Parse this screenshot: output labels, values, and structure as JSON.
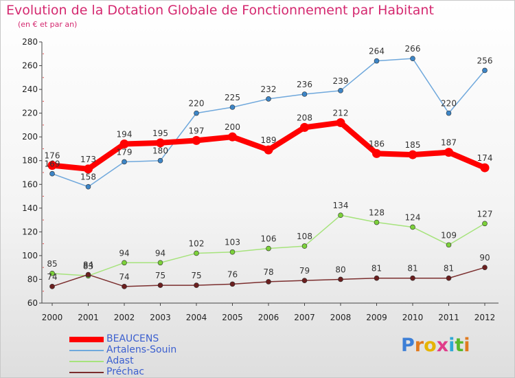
{
  "title": "Evolution de la Dotation Globale de Fonctionnement par Habitant",
  "subtitle": "(en € et par an)",
  "logo_text": "Proxiti",
  "colors": {
    "title": "#d4286f",
    "legend_text": "#3b5fcf"
  },
  "chart_data": {
    "type": "line",
    "x": [
      "2000",
      "2001",
      "2002",
      "2003",
      "2004",
      "2005",
      "2006",
      "2007",
      "2008",
      "2009",
      "2010",
      "2011",
      "2012"
    ],
    "ylim": [
      60,
      280
    ],
    "yticks": [
      60,
      80,
      100,
      120,
      140,
      160,
      180,
      200,
      220,
      240,
      260,
      280
    ],
    "grid": false,
    "legend_position": "bottom-left",
    "series": [
      {
        "name": "BEAUCENS",
        "color": "#ff0000",
        "point_color": "#ff0000",
        "width": 8,
        "values": [
          176,
          173,
          194,
          195,
          197,
          200,
          189,
          208,
          212,
          186,
          185,
          187,
          174
        ],
        "labels": [
          "176",
          "173",
          "194",
          "195",
          "197",
          "200",
          "189",
          "208",
          "212",
          "186",
          "185",
          "187",
          "174"
        ]
      },
      {
        "name": "Artalens-Souin",
        "color": "#6fa8dc",
        "point_color": "#3d85c6",
        "width": 1.5,
        "values": [
          169,
          158,
          179,
          180,
          220,
          225,
          232,
          236,
          239,
          264,
          266,
          220,
          256
        ],
        "labels": [
          "169",
          "158",
          "179",
          "180",
          "220",
          "225",
          "232",
          "236",
          "239",
          "264",
          "266",
          "220",
          "256"
        ]
      },
      {
        "name": "Adast",
        "color": "#a6e37c",
        "point_color": "#7cd13a",
        "width": 1.5,
        "values": [
          85,
          83,
          94,
          94,
          102,
          103,
          106,
          108,
          134,
          128,
          124,
          109,
          127
        ],
        "labels": [
          "85",
          "83",
          "94",
          "94",
          "102",
          "103",
          "106",
          "108",
          "134",
          "128",
          "124",
          "109",
          "127"
        ]
      },
      {
        "name": "Préchac",
        "color": "#7b2e2e",
        "point_color": "#6b1f1f",
        "width": 1.5,
        "values": [
          74,
          84,
          74,
          75,
          75,
          76,
          78,
          79,
          80,
          81,
          81,
          81,
          90
        ],
        "labels": [
          "74",
          "84",
          "74",
          "75",
          "75",
          "76",
          "78",
          "79",
          "80",
          "81",
          "81",
          "81",
          "90"
        ]
      }
    ]
  }
}
